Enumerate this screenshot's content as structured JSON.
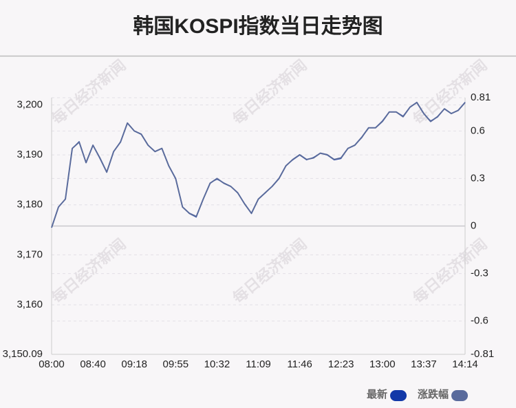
{
  "chart_data": {
    "type": "line",
    "title": "韩国KOSPI指数当日走势图",
    "watermark": "每日经济新闻",
    "categories": [
      "08:00",
      null,
      null,
      null,
      null,
      null,
      "08:40",
      null,
      null,
      null,
      null,
      null,
      "09:18",
      null,
      null,
      null,
      null,
      null,
      "09:55",
      null,
      null,
      null,
      null,
      null,
      "10:32",
      null,
      null,
      null,
      null,
      null,
      "11:09",
      null,
      null,
      null,
      null,
      null,
      "11:46",
      null,
      null,
      null,
      null,
      null,
      "12:23",
      null,
      null,
      null,
      null,
      null,
      "13:00",
      null,
      null,
      null,
      null,
      null,
      "13:37",
      null,
      null,
      null,
      null,
      null,
      "14:14"
    ],
    "series": [
      {
        "name": "最新",
        "color": "#1238a8",
        "values": [
          3175.45,
          3179.59,
          3181.1,
          3191.3,
          3192.7,
          3188.55,
          3192.0,
          3189.24,
          3186.48,
          3190.62,
          3192.7,
          3196.41,
          3194.76,
          3194.07,
          3192.0,
          3190.62,
          3191.3,
          3187.86,
          3185.1,
          3179.59,
          3178.21,
          3177.52,
          3181.1,
          3184.41,
          3185.1,
          3184.41,
          3183.72,
          3182.34,
          3180.28,
          3178.21,
          3181.1,
          3182.34,
          3183.72,
          3185.38,
          3187.86,
          3188.97,
          3189.93,
          3188.97,
          3189.52,
          3190.34,
          3189.93,
          3188.97,
          3189.24,
          3191.3,
          3192.0,
          3193.38,
          3195.45,
          3195.45,
          3196.83,
          3198.62,
          3198.62,
          3197.79,
          3199.59,
          3200.55,
          3198.21,
          3196.83,
          3197.52,
          3199.17,
          3198.21,
          3198.9,
          3200.55
        ]
      },
      {
        "name": "涨跌幅",
        "color": "#5a6b9c",
        "axis": "y2",
        "values": [
          -0.01,
          0.12,
          0.17,
          0.49,
          0.53,
          0.4,
          0.51,
          0.43,
          0.34,
          0.47,
          0.53,
          0.65,
          0.6,
          0.58,
          0.51,
          0.47,
          0.49,
          0.38,
          0.3,
          0.12,
          0.08,
          0.06,
          0.17,
          0.27,
          0.3,
          0.27,
          0.25,
          0.21,
          0.14,
          0.08,
          0.17,
          0.21,
          0.25,
          0.3,
          0.38,
          0.42,
          0.45,
          0.42,
          0.43,
          0.46,
          0.45,
          0.42,
          0.43,
          0.49,
          0.51,
          0.56,
          0.62,
          0.62,
          0.66,
          0.72,
          0.72,
          0.69,
          0.75,
          0.78,
          0.71,
          0.66,
          0.69,
          0.74,
          0.71,
          0.73,
          0.78
        ]
      }
    ],
    "ylim": [
      3150.09,
      3201.44
    ],
    "yticks": [
      {
        "value": 3150.09,
        "label": "3,150.09"
      },
      {
        "value": 3160,
        "label": "3,160"
      },
      {
        "value": 3170,
        "label": "3,170"
      },
      {
        "value": 3180,
        "label": "3,180"
      },
      {
        "value": 3190,
        "label": "3,190"
      },
      {
        "value": 3200,
        "label": "3,200"
      }
    ],
    "y2lim": [
      -0.81,
      0.81
    ],
    "y2ticks": [
      -0.81,
      -0.6,
      -0.3,
      0,
      0.3,
      0.6,
      0.81
    ],
    "grid": true
  }
}
